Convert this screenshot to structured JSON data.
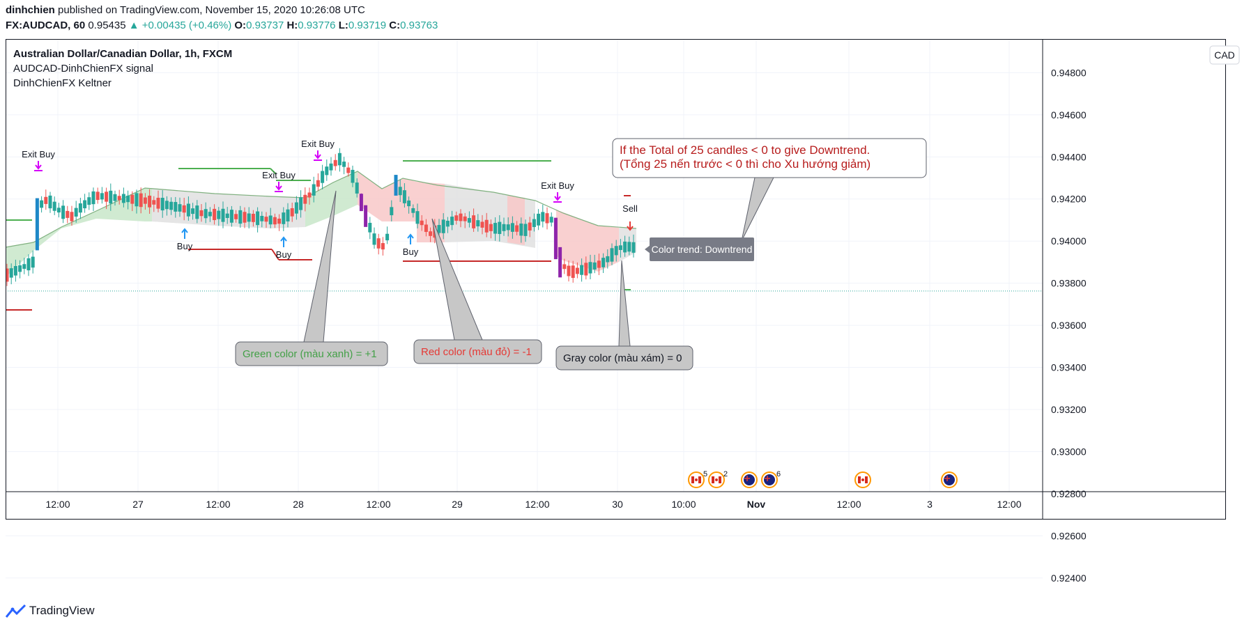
{
  "header": {
    "user": "dinhchien",
    "published_text": "published on TradingView.com, November 15, 2020 10:26:08 UTC",
    "symbol": "FX:AUDCAD, 60",
    "price": "0.95435",
    "change": "▲ +0.00435 (+0.46%)",
    "o_label": "O:",
    "o_value": "0.93737",
    "h_label": "H:",
    "h_value": "0.93776",
    "l_label": "L:",
    "l_value": "0.93719",
    "c_label": "C:",
    "c_value": "0.93763"
  },
  "legend": {
    "line1": "Australian Dollar/Canadian Dollar, 1h, FXCM",
    "line2": "AUDCAD-DinhChienFX signal",
    "line3": "DinhChienFX Keltner"
  },
  "currency_badge": "CAD",
  "footer": {
    "brand": "TradingView"
  },
  "colors": {
    "bull": "#26a69a",
    "bear": "#ef5350",
    "signal_blue": "#2196f3",
    "signal_magenta": "#d500f9",
    "band_green": "#c8e6c9",
    "band_red": "#f8c8c8",
    "band_gray": "#e0e0e0",
    "support_green": "#4caf50",
    "resist_red": "#c62828"
  },
  "chart_data": {
    "type": "candlestick",
    "y_ticks": [
      "0.94800",
      "0.94600",
      "0.94400",
      "0.94200",
      "0.94000",
      "0.93800",
      "0.93600",
      "0.93400",
      "0.93200",
      "0.93000",
      "0.92800",
      "0.92600",
      "0.92400"
    ],
    "ylim": [
      0.9233,
      0.9496
    ],
    "x_ticks": [
      "12:00",
      "27",
      "12:00",
      "28",
      "12:00",
      "29",
      "12:00",
      "30",
      "10:00",
      "Nov",
      "12:00",
      "3",
      "12:00"
    ],
    "last_price": 0.93763,
    "annotation_main_line1": "If the Total of 25 candles < 0 to give Downtrend.",
    "annotation_main_line2": "(Tổng 25 nến trước < 0 thì cho Xu hướng giảm)",
    "annotation_green": "Green color (màu xanh) = +1",
    "annotation_red": "Red color (màu đỏ) = -1",
    "annotation_gray": "Gray color (màu xám) = 0",
    "trend_label": "Color trend: Downtrend",
    "signals": [
      {
        "text": "Exit Buy",
        "kind": "exit"
      },
      {
        "text": "Buy",
        "kind": "buy"
      },
      {
        "text": "Exit Buy",
        "kind": "exit"
      },
      {
        "text": "Buy",
        "kind": "buy"
      },
      {
        "text": "Exit Buy",
        "kind": "exit"
      },
      {
        "text": "Buy",
        "kind": "buy"
      },
      {
        "text": "Exit Buy",
        "kind": "exit"
      },
      {
        "text": "Sell",
        "kind": "sell"
      }
    ],
    "event_badges": [
      {
        "flag": "CA",
        "count": "5"
      },
      {
        "flag": "CA",
        "count": "2"
      },
      {
        "flag": "AU",
        "count": ""
      },
      {
        "flag": "AU",
        "count": "6"
      },
      {
        "flag": "CA",
        "count": ""
      },
      {
        "flag": "AU",
        "count": ""
      }
    ]
  }
}
